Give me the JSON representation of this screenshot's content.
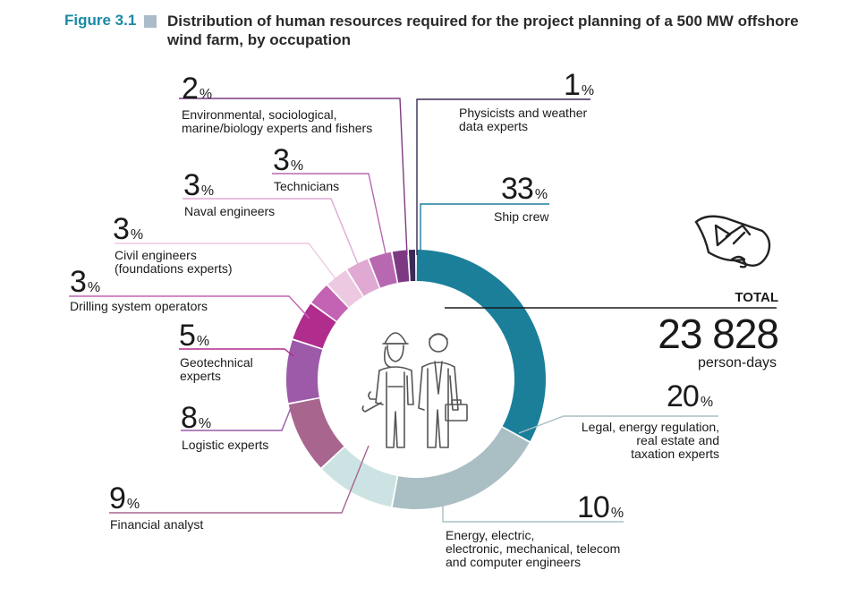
{
  "figure": {
    "label": "Figure 3.1",
    "title": "Distribution of human resources required for the project planning of a 500 MW offshore wind farm, by occupation"
  },
  "total": {
    "label": "TOTAL",
    "value": "23 828",
    "unit": "person-days"
  },
  "chart_data": {
    "type": "pie",
    "donut": true,
    "unit": "%",
    "title": "Distribution of human resources required for the project planning of a 500 MW offshore wind farm, by occupation",
    "slices": [
      {
        "label": "Ship crew",
        "value": 33,
        "color": "#1b7f9a"
      },
      {
        "label": "Legal, energy regulation, real estate and taxation experts",
        "value": 20,
        "color": "#a9bfc4"
      },
      {
        "label": "Energy, electric, electronic, mechanical, telecom and computer engineers",
        "value": 10,
        "color": "#cde3e3"
      },
      {
        "label": "Financial analyst",
        "value": 9,
        "color": "#a8668f"
      },
      {
        "label": "Logistic experts",
        "value": 8,
        "color": "#9c5aa8"
      },
      {
        "label": "Geotechnical experts",
        "value": 5,
        "color": "#b02c8d"
      },
      {
        "label": "Drilling system operators",
        "value": 3,
        "color": "#c463b3"
      },
      {
        "label": "Civil engineers (foundations experts)",
        "value": 3,
        "color": "#edc9e1"
      },
      {
        "label": "Naval engineers",
        "value": 3,
        "color": "#e0a9d3"
      },
      {
        "label": "Technicians",
        "value": 3,
        "color": "#b868b0"
      },
      {
        "label": "Environmental, sociological, marine/biology experts and fishers",
        "value": 2,
        "color": "#7d3a82"
      },
      {
        "label": "Physicists and weather data experts",
        "value": 1,
        "color": "#3a2a55"
      }
    ]
  },
  "labels": {
    "environmental": {
      "value": "2",
      "unit": "%",
      "text1": "Environmental, sociological,",
      "text2": "marine/biology experts and fishers"
    },
    "physicists": {
      "value": "1",
      "unit": "%",
      "text1": "Physicists and weather",
      "text2": "data experts"
    },
    "technicians": {
      "value": "3",
      "unit": "%",
      "text1": "Technicians"
    },
    "naval": {
      "value": "3",
      "unit": "%",
      "text1": "Naval engineers"
    },
    "ship": {
      "value": "33",
      "unit": "%",
      "text1": "Ship crew"
    },
    "civil": {
      "value": "3",
      "unit": "%",
      "text1": "Civil engineers",
      "text2": "(foundations experts)"
    },
    "drilling": {
      "value": "3",
      "unit": "%",
      "text1": "Drilling system operators"
    },
    "geotechnical": {
      "value": "5",
      "unit": "%",
      "text1": "Geotechnical",
      "text2": "experts"
    },
    "logistic": {
      "value": "8",
      "unit": "%",
      "text1": "Logistic experts"
    },
    "legal": {
      "value": "20",
      "unit": "%",
      "text1": "Legal, energy regulation,",
      "text2": "real estate and",
      "text3": "taxation experts"
    },
    "financial": {
      "value": "9",
      "unit": "%",
      "text1": "Financial analyst"
    },
    "energy": {
      "value": "10",
      "unit": "%",
      "text1": "Energy, electric,",
      "text2": "electronic, mechanical, telecom",
      "text3": "and computer engineers"
    }
  },
  "icons": [
    "workers-icon",
    "scroll-map-icon"
  ]
}
